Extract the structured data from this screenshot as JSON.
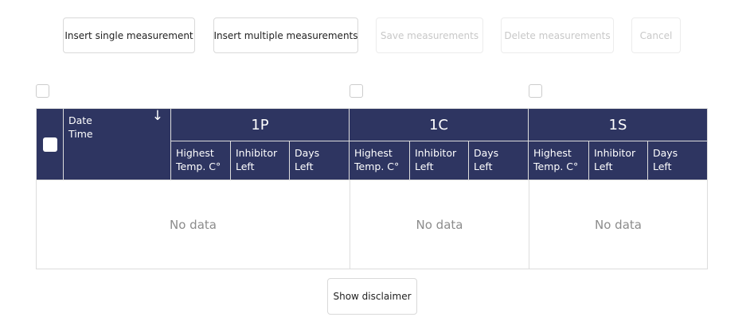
{
  "toolbar": {
    "insert_single": "Insert single measurement",
    "insert_multiple": "Insert multiple measurements",
    "save": "Save measurements",
    "delete": "Delete measurements",
    "cancel": "Cancel"
  },
  "table": {
    "date_header": "Date",
    "time_header": "Time",
    "sort_icon": "↓",
    "groups": [
      {
        "label": "1P"
      },
      {
        "label": "1C"
      },
      {
        "label": "1S"
      }
    ],
    "sub": {
      "h1": "Highest",
      "h2": "Temp. C°",
      "i1": "Inhibitor",
      "i2": "Left",
      "d1": "Days",
      "d2": "Left"
    },
    "empty_text": "No data"
  },
  "footer": {
    "disclaimer": "Show disclaimer"
  },
  "colors": {
    "header_bg": "#2e3561"
  }
}
